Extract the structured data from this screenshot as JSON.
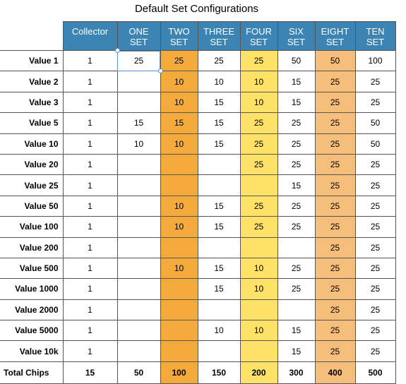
{
  "title": "Default Set Configurations",
  "columns": [
    {
      "label": "Collector",
      "color": "white"
    },
    {
      "label": "ONE\nSET",
      "color": "white"
    },
    {
      "label": "TWO\nSET",
      "color": "orange"
    },
    {
      "label": "THREE\nSET",
      "color": "white"
    },
    {
      "label": "FOUR\nSET",
      "color": "yellow"
    },
    {
      "label": "SIX\nSET",
      "color": "white"
    },
    {
      "label": "EIGHT\nSET",
      "color": "peach"
    },
    {
      "label": "TEN\nSET",
      "color": "white"
    }
  ],
  "colors": {
    "header": "#3b84b3",
    "orange": "#f5ab3b",
    "yellow": "#fde267",
    "peach": "#f5be7a"
  },
  "rows": [
    {
      "label": "Value 1",
      "values": [
        "1",
        "25",
        "25",
        "25",
        "25",
        "50",
        "50",
        "100"
      ]
    },
    {
      "label": "Value 2",
      "values": [
        "1",
        "",
        "10",
        "10",
        "10",
        "15",
        "25",
        "25"
      ]
    },
    {
      "label": "Value 3",
      "values": [
        "1",
        "",
        "10",
        "15",
        "10",
        "15",
        "25",
        "25"
      ]
    },
    {
      "label": "Value 5",
      "values": [
        "1",
        "15",
        "15",
        "15",
        "25",
        "25",
        "25",
        "50"
      ]
    },
    {
      "label": "Value 10",
      "values": [
        "1",
        "10",
        "10",
        "15",
        "25",
        "25",
        "25",
        "50"
      ]
    },
    {
      "label": "Value 20",
      "values": [
        "1",
        "",
        "",
        "",
        "25",
        "25",
        "25",
        "25"
      ]
    },
    {
      "label": "Value 25",
      "values": [
        "1",
        "",
        "",
        "",
        "",
        "15",
        "25",
        "25"
      ]
    },
    {
      "label": "Value 50",
      "values": [
        "1",
        "",
        "10",
        "15",
        "25",
        "25",
        "25",
        "25"
      ]
    },
    {
      "label": "Value 100",
      "values": [
        "1",
        "",
        "10",
        "15",
        "25",
        "25",
        "25",
        "25"
      ]
    },
    {
      "label": "Value 200",
      "values": [
        "1",
        "",
        "",
        "",
        "",
        "",
        "25",
        "25"
      ]
    },
    {
      "label": "Value 500",
      "values": [
        "1",
        "",
        "10",
        "15",
        "10",
        "25",
        "25",
        "25"
      ]
    },
    {
      "label": "Value 1000",
      "values": [
        "1",
        "",
        "",
        "15",
        "10",
        "25",
        "25",
        "25"
      ]
    },
    {
      "label": "Value 2000",
      "values": [
        "1",
        "",
        "",
        "",
        "",
        "",
        "25",
        "25"
      ]
    },
    {
      "label": "Value 5000",
      "values": [
        "1",
        "",
        "",
        "10",
        "10",
        "15",
        "25",
        "25"
      ]
    },
    {
      "label": "Value 10k",
      "values": [
        "1",
        "",
        "",
        "",
        "",
        "15",
        "25",
        "25"
      ]
    }
  ],
  "totals": {
    "label": "Total Chips",
    "values": [
      "15",
      "50",
      "100",
      "150",
      "200",
      "300",
      "400",
      "500"
    ]
  }
}
